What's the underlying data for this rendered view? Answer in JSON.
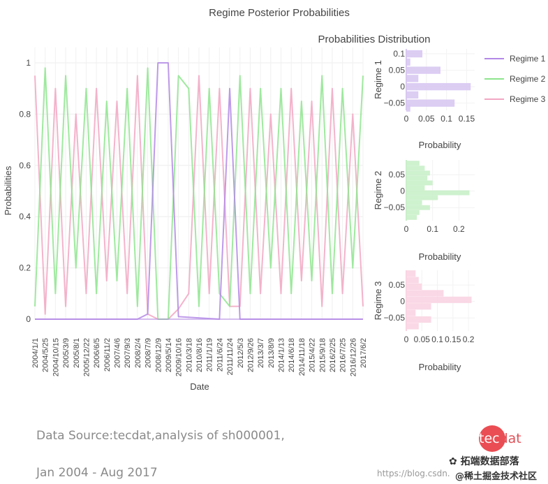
{
  "chart_data": [
    {
      "type": "line",
      "title": "Regime Posterior Probabilities",
      "xlabel": "Date",
      "ylabel": "Probabilities",
      "ylim": [
        0,
        1
      ],
      "y_ticks": [
        0,
        0.2,
        0.4,
        0.6,
        0.8,
        1
      ],
      "x_tick_labels": [
        "2004/1/1",
        "2004/5/25",
        "2004/10/15",
        "2005/3/9",
        "2005/8/1",
        "2005/12/22",
        "2006/6/5",
        "2006/11/2",
        "2007/4/6",
        "2007/9/3",
        "2008/2/4",
        "2008/7/9",
        "2008/12/9",
        "2009/5/14",
        "2009/10/16",
        "2010/3/18",
        "2010/8/16",
        "2011/1/19",
        "2011/6/24",
        "2011/11/24",
        "2012/5/3",
        "2012/9/26",
        "2013/3/7",
        "2013/8/9",
        "2014/1/13",
        "2014/6/18",
        "2014/11/18",
        "2015/4/22",
        "2015/9/18",
        "2016/2/25",
        "2016/7/25",
        "2016/12/26",
        "2017/6/2"
      ],
      "grid": true,
      "series": [
        {
          "name": "Regime 1",
          "color": "#b388e6",
          "points": [
            [
              "2004/1/1",
              0.0
            ],
            [
              "2008/2/4",
              0.0
            ],
            [
              "2008/7/9",
              0.02
            ],
            [
              "2008/12/9",
              1.0
            ],
            [
              "2009/5/14",
              1.0
            ],
            [
              "2009/10/16",
              0.01
            ],
            [
              "2011/6/24",
              0.0
            ],
            [
              "2011/11/24",
              0.9
            ],
            [
              "2012/5/3",
              0.0
            ],
            [
              "2017/6/2",
              0.0
            ]
          ]
        },
        {
          "name": "Regime 2",
          "color": "#8ee58e",
          "points": [
            [
              "2004/1/1",
              0.05
            ],
            [
              "2004/5/25",
              0.98
            ],
            [
              "2004/10/15",
              0.1
            ],
            [
              "2005/3/9",
              0.95
            ],
            [
              "2005/8/1",
              0.2
            ],
            [
              "2005/12/22",
              0.9
            ],
            [
              "2006/6/5",
              0.1
            ],
            [
              "2006/11/2",
              0.85
            ],
            [
              "2007/4/6",
              0.15
            ],
            [
              "2007/9/3",
              0.9
            ],
            [
              "2008/2/4",
              0.05
            ],
            [
              "2008/7/9",
              0.98
            ],
            [
              "2008/12/9",
              0.0
            ],
            [
              "2009/5/14",
              0.0
            ],
            [
              "2009/10/16",
              0.95
            ],
            [
              "2010/3/18",
              0.9
            ],
            [
              "2010/8/16",
              0.05
            ],
            [
              "2011/1/19",
              0.9
            ],
            [
              "2011/6/24",
              0.1
            ],
            [
              "2011/11/24",
              0.05
            ],
            [
              "2012/5/3",
              0.95
            ],
            [
              "2012/9/26",
              0.1
            ],
            [
              "2013/3/7",
              0.9
            ],
            [
              "2013/8/9",
              0.2
            ],
            [
              "2014/1/13",
              0.9
            ],
            [
              "2014/6/18",
              0.1
            ],
            [
              "2014/11/18",
              0.85
            ],
            [
              "2015/4/22",
              0.15
            ],
            [
              "2015/9/18",
              0.95
            ],
            [
              "2016/2/25",
              0.1
            ],
            [
              "2016/7/25",
              0.9
            ],
            [
              "2016/12/26",
              0.2
            ],
            [
              "2017/6/2",
              0.95
            ]
          ]
        },
        {
          "name": "Regime 3",
          "color": "#f2a6c2",
          "points": [
            [
              "2004/1/1",
              0.95
            ],
            [
              "2004/5/25",
              0.02
            ],
            [
              "2004/10/15",
              0.9
            ],
            [
              "2005/3/9",
              0.05
            ],
            [
              "2005/8/1",
              0.8
            ],
            [
              "2005/12/22",
              0.1
            ],
            [
              "2006/6/5",
              0.9
            ],
            [
              "2006/11/2",
              0.15
            ],
            [
              "2007/4/6",
              0.85
            ],
            [
              "2007/9/3",
              0.1
            ],
            [
              "2008/2/4",
              0.95
            ],
            [
              "2008/7/9",
              0.02
            ],
            [
              "2008/12/9",
              0.0
            ],
            [
              "2009/5/14",
              0.0
            ],
            [
              "2009/10/16",
              0.04
            ],
            [
              "2010/3/18",
              0.1
            ],
            [
              "2010/8/16",
              0.95
            ],
            [
              "2011/1/19",
              0.1
            ],
            [
              "2011/6/24",
              0.9
            ],
            [
              "2011/11/24",
              0.05
            ],
            [
              "2012/5/3",
              0.05
            ],
            [
              "2012/9/26",
              0.9
            ],
            [
              "2013/3/7",
              0.1
            ],
            [
              "2013/8/9",
              0.8
            ],
            [
              "2014/1/13",
              0.1
            ],
            [
              "2014/6/18",
              0.9
            ],
            [
              "2014/11/18",
              0.15
            ],
            [
              "2015/4/22",
              0.85
            ],
            [
              "2015/9/18",
              0.05
            ],
            [
              "2016/2/25",
              0.9
            ],
            [
              "2016/7/25",
              0.1
            ],
            [
              "2016/12/26",
              0.8
            ],
            [
              "2017/6/2",
              0.05
            ]
          ]
        }
      ],
      "legend": {
        "position": "top-right",
        "entries": [
          "Regime 1",
          "Regime 2",
          "Regime 3"
        ]
      }
    },
    {
      "type": "bar",
      "orientation": "horizontal",
      "title": "Probabilities Distribution",
      "ylabel": "Regime 1",
      "xlabel": "Probability",
      "x_ticks": [
        "0",
        "0.05",
        "0.1",
        "0.15"
      ],
      "x_tick_values": [
        0,
        0.05,
        0.1,
        0.15
      ],
      "xlim": [
        0,
        0.17
      ],
      "y_ticks": [
        "0.1",
        "0.05",
        "0",
        "−0.05"
      ],
      "y_tick_values": [
        0.1,
        0.05,
        0,
        -0.05
      ],
      "ylim": [
        -0.072,
        0.115
      ],
      "color": "#d8c8f2",
      "bins": [
        {
          "y": 0.1,
          "value": 0.04
        },
        {
          "y": 0.075,
          "value": 0.01
        },
        {
          "y": 0.05,
          "value": 0.085
        },
        {
          "y": 0.025,
          "value": 0.03
        },
        {
          "y": 0.0,
          "value": 0.16
        },
        {
          "y": -0.025,
          "value": 0.03
        },
        {
          "y": -0.05,
          "value": 0.12
        },
        {
          "y": -0.065,
          "value": 0.01
        }
      ]
    },
    {
      "type": "bar",
      "orientation": "horizontal",
      "ylabel": "Regime 2",
      "xlabel": "Probability",
      "x_ticks": [
        "0",
        "0.1",
        "0.2"
      ],
      "x_tick_values": [
        0,
        0.1,
        0.2
      ],
      "xlim": [
        0,
        0.26
      ],
      "y_ticks": [
        "0.05",
        "0",
        "−0.05"
      ],
      "y_tick_values": [
        0.05,
        0,
        -0.05
      ],
      "ylim": [
        -0.09,
        0.095
      ],
      "color": "#c9f0c9",
      "bins": [
        {
          "y": 0.085,
          "value": 0.05
        },
        {
          "y": 0.07,
          "value": 0.07
        },
        {
          "y": 0.055,
          "value": 0.09
        },
        {
          "y": 0.04,
          "value": 0.08
        },
        {
          "y": 0.025,
          "value": 0.1
        },
        {
          "y": 0.01,
          "value": 0.07
        },
        {
          "y": -0.005,
          "value": 0.24
        },
        {
          "y": -0.02,
          "value": 0.12
        },
        {
          "y": -0.035,
          "value": 0.06
        },
        {
          "y": -0.05,
          "value": 0.09
        },
        {
          "y": -0.065,
          "value": 0.05
        },
        {
          "y": -0.08,
          "value": 0.04
        }
      ]
    },
    {
      "type": "bar",
      "orientation": "horizontal",
      "ylabel": "Regime 3",
      "xlabel": "Probability",
      "x_ticks": [
        "0",
        "0.05",
        "0.1",
        "0.15",
        "0.2"
      ],
      "x_tick_values": [
        0,
        0.05,
        0.1,
        0.15,
        0.2
      ],
      "xlim": [
        0,
        0.22
      ],
      "y_ticks": [
        "0.05",
        "0",
        "−0.05"
      ],
      "y_tick_values": [
        0.05,
        0,
        -0.05
      ],
      "ylim": [
        -0.09,
        0.095
      ],
      "color": "#fad4e2",
      "bins": [
        {
          "y": 0.085,
          "value": 0.03
        },
        {
          "y": 0.065,
          "value": 0.04
        },
        {
          "y": 0.045,
          "value": 0.05
        },
        {
          "y": 0.025,
          "value": 0.12
        },
        {
          "y": 0.005,
          "value": 0.21
        },
        {
          "y": -0.015,
          "value": 0.08
        },
        {
          "y": -0.035,
          "value": 0.03
        },
        {
          "y": -0.055,
          "value": 0.08
        },
        {
          "y": -0.075,
          "value": 0.04
        }
      ]
    }
  ],
  "source": {
    "line1": "Data Source:tecdat,analysis of sh000001,",
    "line2": "Jan 2004 - Aug 2017"
  },
  "logo": {
    "part1": "tec",
    "part2": "dat"
  },
  "watermark": {
    "wechat": "拓端数据部落",
    "blog": "https://blog.csdn.",
    "site": "@稀土掘金技术社区"
  }
}
